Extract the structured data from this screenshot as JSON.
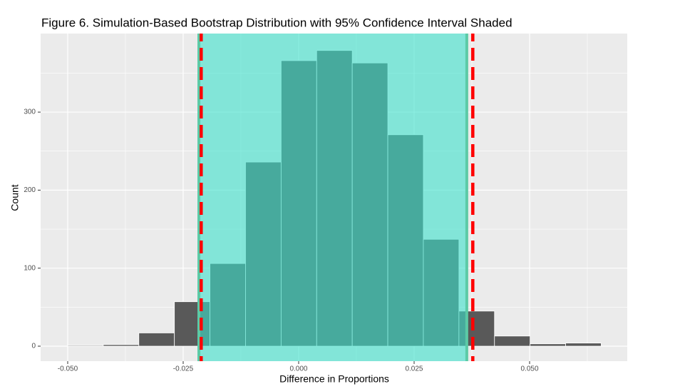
{
  "chart_data": {
    "type": "histogram",
    "title": "Figure 6. Simulation-Based Bootstrap Distribution with 95% Confidence Interval Shaded",
    "xlabel": "Difference in Proportions",
    "ylabel": "Count",
    "bins": [
      -0.05,
      -0.0423,
      -0.0346,
      -0.0269,
      -0.0192,
      -0.0115,
      -0.0038,
      0.0039,
      0.0116,
      0.0193,
      0.027,
      0.0347,
      0.0424,
      0.0501,
      0.0578,
      0.0655
    ],
    "counts": [
      1,
      2,
      17,
      57,
      106,
      236,
      366,
      379,
      363,
      271,
      137,
      45,
      13,
      3,
      4
    ],
    "color": "#595959",
    "shade": [
      -0.0216,
      0.0364
    ],
    "shade_color": "#3ce1cc",
    "shade_edge": "#5ccaa6",
    "vlines": [
      -0.0211,
      0.0377
    ],
    "vline_color": "#ff0000",
    "xlim": [
      -0.05586,
      0.07114
    ],
    "ylim": [
      -19.2,
      400.7
    ],
    "xticks": [
      {
        "value": -0.05,
        "label": "-0.050"
      },
      {
        "value": -0.025,
        "label": "-0.025"
      },
      {
        "value": 0,
        "label": "0.000"
      },
      {
        "value": 0.025,
        "label": "0.025"
      },
      {
        "value": 0.05,
        "label": "0.050"
      }
    ],
    "yticks": [
      0,
      100,
      200,
      300
    ],
    "x_minor_grid": [
      -0.0375,
      -0.0125,
      0.0125,
      0.0375,
      0.0625
    ],
    "y_minor_grid": [
      50,
      150,
      250,
      350
    ],
    "grid": true
  }
}
